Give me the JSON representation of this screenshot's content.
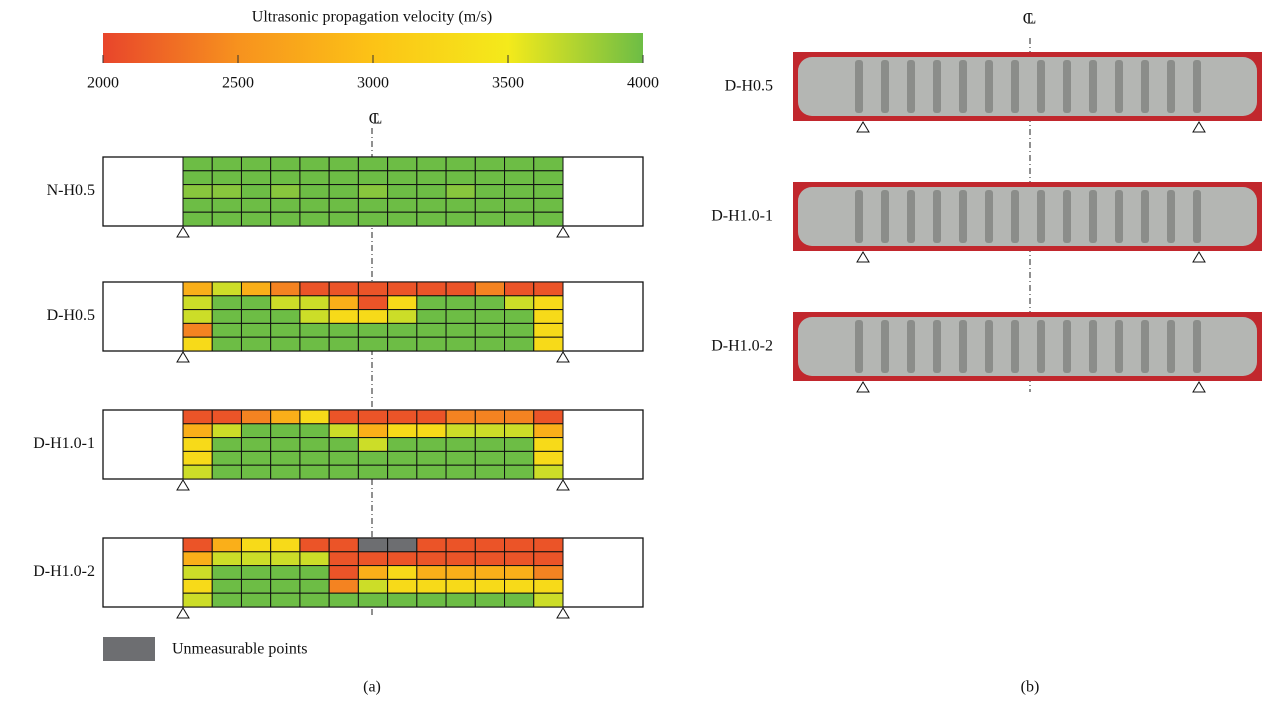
{
  "chart_data": {
    "type": "heatmap",
    "title": "Ultrasonic propagation velocity (m/s)",
    "clim": [
      2000,
      4000
    ],
    "ticks": [
      2000,
      2500,
      3000,
      3500,
      4000
    ],
    "colors": [
      "#e8452b",
      "#f7921e",
      "#fcc316",
      "#f4ea1b",
      "#6dbd45"
    ],
    "null_color": "#6d6e71",
    "null_label": "Unmeasurable points",
    "centerline_label": "CL",
    "caption": "(a)",
    "panels": [
      {
        "name": "N-H0.5",
        "values": [
          [
            4000,
            4000,
            4000,
            4000,
            4000,
            4000,
            4000,
            4000,
            4000,
            4000,
            4000,
            4000,
            4000
          ],
          [
            4000,
            4000,
            4000,
            4000,
            4000,
            4000,
            4000,
            4000,
            4000,
            4000,
            4000,
            4000,
            4000
          ],
          [
            3900,
            3900,
            4000,
            3900,
            4000,
            4000,
            3900,
            4000,
            4000,
            3900,
            4000,
            4000,
            4000
          ],
          [
            4000,
            4000,
            4000,
            4000,
            4000,
            4000,
            4000,
            4000,
            4000,
            4000,
            4000,
            4000,
            4000
          ],
          [
            4000,
            4000,
            4000,
            4000,
            4000,
            4000,
            4000,
            4000,
            4000,
            4000,
            4000,
            4000,
            4000
          ]
        ]
      },
      {
        "name": "D-H0.5",
        "values": [
          [
            2800,
            3650,
            2800,
            2400,
            2100,
            2100,
            2100,
            2100,
            2100,
            2100,
            2400,
            2100,
            2100
          ],
          [
            3650,
            4000,
            4000,
            3650,
            3650,
            2800,
            2100,
            3300,
            4000,
            4000,
            4000,
            3650,
            3300
          ],
          [
            3650,
            4000,
            4000,
            4000,
            3650,
            3300,
            3300,
            3650,
            4000,
            4000,
            4000,
            4000,
            3300
          ],
          [
            2400,
            4000,
            4000,
            4000,
            4000,
            4000,
            4000,
            4000,
            4000,
            4000,
            4000,
            4000,
            3300
          ],
          [
            3300,
            4000,
            4000,
            4000,
            4000,
            4000,
            4000,
            4000,
            4000,
            4000,
            4000,
            4000,
            3300
          ]
        ]
      },
      {
        "name": "D-H1.0-1",
        "values": [
          [
            2100,
            2100,
            2400,
            2800,
            3300,
            2100,
            2100,
            2100,
            2100,
            2400,
            2400,
            2400,
            2100
          ],
          [
            2800,
            3650,
            4000,
            4000,
            4000,
            3650,
            2800,
            3300,
            3300,
            3650,
            3650,
            3650,
            2800
          ],
          [
            3300,
            4000,
            4000,
            4000,
            4000,
            4000,
            3650,
            4000,
            4000,
            4000,
            4000,
            4000,
            3300
          ],
          [
            3300,
            4000,
            4000,
            4000,
            4000,
            4000,
            4000,
            4000,
            4000,
            4000,
            4000,
            4000,
            3300
          ],
          [
            3650,
            4000,
            4000,
            4000,
            4000,
            4000,
            4000,
            4000,
            4000,
            4000,
            4000,
            4000,
            3650
          ]
        ]
      },
      {
        "name": "D-H1.0-2",
        "values": [
          [
            2100,
            2800,
            3300,
            3300,
            2100,
            2100,
            null,
            null,
            2100,
            2100,
            2100,
            2100,
            2100
          ],
          [
            2800,
            3650,
            3650,
            3650,
            3650,
            2100,
            2100,
            2100,
            2100,
            2100,
            2100,
            2100,
            2100
          ],
          [
            3650,
            4000,
            4000,
            4000,
            4000,
            2100,
            2800,
            3300,
            2800,
            2800,
            2800,
            2800,
            2400
          ],
          [
            3300,
            4000,
            4000,
            4000,
            4000,
            2400,
            3650,
            3300,
            3300,
            3300,
            3300,
            3300,
            3300
          ],
          [
            3650,
            4000,
            4000,
            4000,
            4000,
            4000,
            4000,
            4000,
            4000,
            4000,
            4000,
            4000,
            3650
          ]
        ]
      }
    ]
  },
  "figure_b": {
    "labels": [
      "D-H0.5",
      "D-H1.0-1",
      "D-H1.0-2"
    ],
    "centerline_label": "CL",
    "caption": "(b)"
  }
}
